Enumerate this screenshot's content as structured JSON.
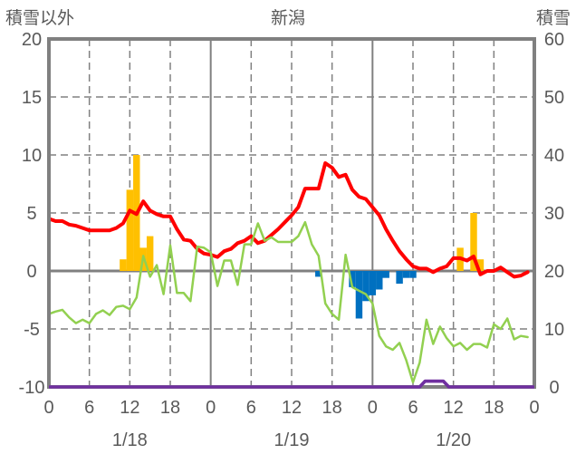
{
  "chart_data": {
    "type": "line",
    "title": "新潟",
    "left_axis_label": "積雪以外",
    "right_axis_label": "積雪",
    "left_ylim": [
      -10,
      20
    ],
    "right_ylim": [
      0,
      60
    ],
    "left_ticks": [
      "20",
      "15",
      "10",
      "5",
      "0",
      "-5",
      "-10"
    ],
    "right_ticks": [
      "60",
      "50",
      "40",
      "30",
      "20",
      "10",
      "0"
    ],
    "left_tick_values": [
      20,
      15,
      10,
      5,
      0,
      -5,
      -10
    ],
    "xlim_hours": [
      0,
      72
    ],
    "x_ticks": [
      "0",
      "6",
      "12",
      "18",
      "0",
      "6",
      "12",
      "18",
      "0",
      "6",
      "12",
      "18",
      "0"
    ],
    "x_tick_hours": [
      0,
      6,
      12,
      18,
      24,
      30,
      36,
      42,
      48,
      54,
      60,
      66,
      72
    ],
    "dates": [
      "1/18",
      "1/19",
      "1/20"
    ],
    "date_center_hours": [
      12,
      36,
      60
    ],
    "grid": "dashed at 15,10,5,-5 and 12h; solid at 0 and day boundaries",
    "bars_positive": {
      "axis": "left",
      "color": "#FFC000",
      "points": [
        [
          11,
          1
        ],
        [
          12,
          7
        ],
        [
          13,
          10
        ],
        [
          14,
          2
        ],
        [
          15,
          3
        ],
        [
          61,
          2
        ],
        [
          63,
          5
        ],
        [
          64,
          1
        ]
      ]
    },
    "bars_negative": {
      "axis": "left",
      "color": "#0070C0",
      "points": [
        [
          40,
          -0.5
        ],
        [
          45,
          -1.4
        ],
        [
          46,
          -4.1
        ],
        [
          47,
          -2.6
        ],
        [
          48,
          -2.1
        ],
        [
          49,
          -1.6
        ],
        [
          50,
          -0.6
        ],
        [
          52,
          -1.1
        ],
        [
          53,
          -0.6
        ],
        [
          54,
          -0.6
        ]
      ]
    },
    "series": [
      {
        "id": "red",
        "axis": "left",
        "color": "#FF0000",
        "width": 4,
        "points": [
          [
            0,
            4.5
          ],
          [
            1,
            4.3
          ],
          [
            2,
            4.3
          ],
          [
            3,
            4.0
          ],
          [
            4,
            3.9
          ],
          [
            5,
            3.7
          ],
          [
            6,
            3.5
          ],
          [
            7,
            3.5
          ],
          [
            8,
            3.5
          ],
          [
            9,
            3.5
          ],
          [
            10,
            3.7
          ],
          [
            11,
            4.1
          ],
          [
            12,
            5.2
          ],
          [
            13,
            4.9
          ],
          [
            14,
            6.0
          ],
          [
            15,
            5.2
          ],
          [
            16,
            4.9
          ],
          [
            17,
            4.7
          ],
          [
            18,
            4.7
          ],
          [
            19,
            3.6
          ],
          [
            20,
            2.7
          ],
          [
            21,
            2.6
          ],
          [
            22,
            1.9
          ],
          [
            23,
            1.5
          ],
          [
            24,
            1.4
          ],
          [
            25,
            1.2
          ],
          [
            26,
            1.7
          ],
          [
            27,
            1.9
          ],
          [
            28,
            2.4
          ],
          [
            29,
            2.6
          ],
          [
            30,
            3.0
          ],
          [
            31,
            2.4
          ],
          [
            32,
            2.6
          ],
          [
            33,
            3.1
          ],
          [
            34,
            3.6
          ],
          [
            35,
            4.2
          ],
          [
            36,
            4.8
          ],
          [
            37,
            5.5
          ],
          [
            38,
            7.1
          ],
          [
            39,
            7.1
          ],
          [
            40,
            7.1
          ],
          [
            41,
            9.3
          ],
          [
            42,
            8.9
          ],
          [
            43,
            8.1
          ],
          [
            44,
            8.3
          ],
          [
            45,
            7.0
          ],
          [
            46,
            6.4
          ],
          [
            47,
            6.2
          ],
          [
            48,
            5.5
          ],
          [
            49,
            4.8
          ],
          [
            50,
            3.6
          ],
          [
            51,
            2.6
          ],
          [
            52,
            1.7
          ],
          [
            53,
            1.0
          ],
          [
            54,
            0.4
          ],
          [
            55,
            0.2
          ],
          [
            56,
            0.2
          ],
          [
            57,
            -0.1
          ],
          [
            58,
            0.2
          ],
          [
            59,
            0.4
          ],
          [
            60,
            1.1
          ],
          [
            61,
            1.1
          ],
          [
            62,
            0.9
          ],
          [
            63,
            1.25
          ],
          [
            64,
            -0.3
          ],
          [
            65,
            0
          ],
          [
            66,
            0
          ],
          [
            67,
            0.3
          ],
          [
            68,
            -0.1
          ],
          [
            69,
            -0.5
          ],
          [
            70,
            -0.4
          ],
          [
            71,
            -0.1
          ]
        ]
      },
      {
        "id": "green",
        "axis": "left",
        "color": "#92D050",
        "width": 2.5,
        "points": [
          [
            0,
            -3.7
          ],
          [
            1,
            -3.5
          ],
          [
            2,
            -3.35
          ],
          [
            3,
            -4.0
          ],
          [
            4,
            -4.5
          ],
          [
            5,
            -4.2
          ],
          [
            6,
            -4.5
          ],
          [
            7,
            -3.7
          ],
          [
            8,
            -3.4
          ],
          [
            9,
            -3.8
          ],
          [
            10,
            -3.1
          ],
          [
            11,
            -3.0
          ],
          [
            12,
            -3.3
          ],
          [
            13,
            -2.3
          ],
          [
            14,
            1.3
          ],
          [
            15,
            -0.5
          ],
          [
            16,
            0.5
          ],
          [
            17,
            -2.0
          ],
          [
            18,
            2.2
          ],
          [
            19,
            -1.9
          ],
          [
            20,
            -1.9
          ],
          [
            21,
            -2.6
          ],
          [
            22,
            2.1
          ],
          [
            23,
            2.0
          ],
          [
            24,
            1.6
          ],
          [
            25,
            -1.3
          ],
          [
            26,
            0.9
          ],
          [
            27,
            0.9
          ],
          [
            28,
            -1.2
          ],
          [
            29,
            2.3
          ],
          [
            30,
            2.3
          ],
          [
            31,
            4.1
          ],
          [
            32,
            2.6
          ],
          [
            33,
            2.9
          ],
          [
            34,
            2.5
          ],
          [
            35,
            2.5
          ],
          [
            36,
            2.5
          ],
          [
            37,
            3.0
          ],
          [
            38,
            4.2
          ],
          [
            39,
            2.3
          ],
          [
            40,
            1.3
          ],
          [
            41,
            -2.8
          ],
          [
            42,
            -3.7
          ],
          [
            43,
            -4.2
          ],
          [
            44,
            1.4
          ],
          [
            45,
            -1.4
          ],
          [
            46,
            -1.7
          ],
          [
            47,
            -2.0
          ],
          [
            48,
            -2.8
          ],
          [
            49,
            -5.6
          ],
          [
            50,
            -6.5
          ],
          [
            51,
            -6.8
          ],
          [
            52,
            -6.2
          ],
          [
            53,
            -7.7
          ],
          [
            54,
            -9.6
          ],
          [
            55,
            -7.9
          ],
          [
            56,
            -4.2
          ],
          [
            57,
            -6.3
          ],
          [
            58,
            -4.8
          ],
          [
            59,
            -5.8
          ],
          [
            60,
            -6.5
          ],
          [
            61,
            -6.2
          ],
          [
            62,
            -6.8
          ],
          [
            63,
            -6.3
          ],
          [
            64,
            -6.3
          ],
          [
            65,
            -6.6
          ],
          [
            66,
            -4.6
          ],
          [
            67,
            -5.0
          ],
          [
            68,
            -4.1
          ],
          [
            69,
            -5.9
          ],
          [
            70,
            -5.6
          ],
          [
            71,
            -5.7
          ]
        ]
      },
      {
        "id": "purple",
        "axis": "right",
        "color": "#7030A0",
        "width": 3.5,
        "points": [
          [
            0,
            0
          ],
          [
            55,
            0
          ],
          [
            55.8,
            1
          ],
          [
            58.5,
            1
          ],
          [
            59.3,
            0
          ],
          [
            72,
            0
          ]
        ]
      }
    ]
  }
}
